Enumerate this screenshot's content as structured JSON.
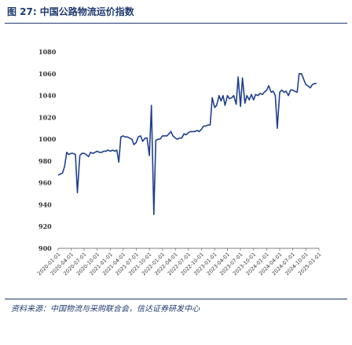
{
  "figure": {
    "number": "图 27:",
    "title": "中国公路物流运价指数",
    "source": "资料来源：中国物流与采购联合会，信达证券研发中心"
  },
  "colors": {
    "line": "#1f3f8f",
    "title": "#1f3a6e",
    "axis": "#555555"
  },
  "chart_data": {
    "type": "line",
    "title": "",
    "xlabel": "",
    "ylabel": "",
    "ylim": [
      900,
      1080
    ],
    "yticks": [
      900,
      920,
      940,
      960,
      980,
      1000,
      1020,
      1040,
      1060,
      1080
    ],
    "grid": false,
    "legend": "none",
    "xticks": [
      "2020-01-01",
      "2020-04-01",
      "2020-07-01",
      "2020-10-01",
      "2021-01-01",
      "2021-04-01",
      "2021-07-01",
      "2021-10-01",
      "2022-01-01",
      "2022-04-01",
      "2022-07-01",
      "2022-10-01",
      "2023-01-01",
      "2023-04-01",
      "2023-07-01",
      "2023-10-01",
      "2024-01-01",
      "2024-04-01",
      "2024-07-01",
      "2024-10-01",
      "2025-01-01"
    ],
    "series": [
      {
        "x": [
          "2020-01-01",
          "2020-01-15",
          "2020-02-01",
          "2020-02-15",
          "2020-03-01",
          "2020-03-15",
          "2020-04-01",
          "2020-04-15",
          "2020-05-01",
          "2020-05-15",
          "2020-06-01",
          "2020-06-15",
          "2020-07-01",
          "2020-07-15",
          "2020-08-01",
          "2020-08-15",
          "2020-09-01",
          "2020-09-15",
          "2020-10-01",
          "2020-10-15",
          "2020-11-01",
          "2020-11-15",
          "2020-12-01",
          "2020-12-15",
          "2021-01-01",
          "2021-01-15",
          "2021-02-01",
          "2021-02-15",
          "2021-03-01",
          "2021-03-15",
          "2021-04-01",
          "2021-04-15",
          "2021-05-01",
          "2021-05-15",
          "2021-06-01",
          "2021-06-15",
          "2021-07-01",
          "2021-07-15",
          "2021-08-01",
          "2021-08-15",
          "2021-09-01",
          "2021-09-15",
          "2021-10-01",
          "2021-10-15",
          "2021-11-01",
          "2021-11-15",
          "2021-12-01",
          "2021-12-15",
          "2022-01-01",
          "2022-01-15",
          "2022-02-01",
          "2022-02-15",
          "2022-03-01",
          "2022-03-15",
          "2022-04-01",
          "2022-04-15",
          "2022-05-01",
          "2022-05-15",
          "2022-06-01",
          "2022-06-15",
          "2022-07-01",
          "2022-07-15",
          "2022-08-01",
          "2022-08-15",
          "2022-09-01",
          "2022-09-15",
          "2022-10-01",
          "2022-10-15",
          "2022-11-01",
          "2022-11-15",
          "2022-12-01",
          "2022-12-15",
          "2023-01-01",
          "2023-01-15",
          "2023-02-01",
          "2023-02-15",
          "2023-03-01",
          "2023-03-15",
          "2023-04-01",
          "2023-04-15",
          "2023-05-01",
          "2023-05-15",
          "2023-06-01",
          "2023-06-15",
          "2023-07-01",
          "2023-07-15",
          "2023-08-01",
          "2023-08-15",
          "2023-09-01",
          "2023-09-15",
          "2023-10-01",
          "2023-10-15",
          "2023-11-01",
          "2023-11-15",
          "2023-12-01",
          "2023-12-15",
          "2024-01-01",
          "2024-01-15",
          "2024-02-01",
          "2024-02-15",
          "2024-03-01",
          "2024-03-15",
          "2024-04-01",
          "2024-04-15",
          "2024-05-01",
          "2024-05-15",
          "2024-06-01",
          "2024-06-15",
          "2024-07-01",
          "2024-07-15",
          "2024-08-01",
          "2024-08-15",
          "2024-09-01",
          "2024-09-15",
          "2024-10-01",
          "2024-10-15",
          "2024-11-01",
          "2024-11-15",
          "2024-12-01",
          "2024-12-15"
        ],
        "values": [
          967,
          968,
          969,
          975,
          988,
          986,
          987,
          987,
          986,
          951,
          985,
          987,
          987,
          986,
          984,
          988,
          987,
          988,
          989,
          988,
          988,
          989,
          989,
          990,
          989,
          990,
          989,
          990,
          979,
          1002,
          1003,
          1002,
          1002,
          1001,
          1000,
          995,
          997,
          1002,
          1003,
          998,
          1001,
          1001,
          985,
          1031,
          931,
          999,
          1000,
          1000,
          1003,
          1003,
          1003,
          1005,
          1007,
          1003,
          1001,
          1000,
          1001,
          1001,
          1005,
          1004,
          1006,
          1007,
          1007,
          1007,
          1008,
          1007,
          1009,
          1012,
          1012,
          1013,
          1013,
          1038,
          1029,
          1031,
          1040,
          1035,
          1040,
          1031,
          1040,
          1037,
          1038,
          1040,
          1032,
          1057,
          1030,
          1056,
          1033,
          1040,
          1036,
          1041,
          1036,
          1041,
          1040,
          1042,
          1041,
          1043,
          1045,
          1049,
          1043,
          1044,
          1040,
          1010,
          1043,
          1045,
          1043,
          1044,
          1040,
          1045,
          1045,
          1044,
          1043,
          1060,
          1060,
          1055,
          1050,
          1049,
          1047,
          1050,
          1051,
          1051
        ]
      }
    ]
  }
}
